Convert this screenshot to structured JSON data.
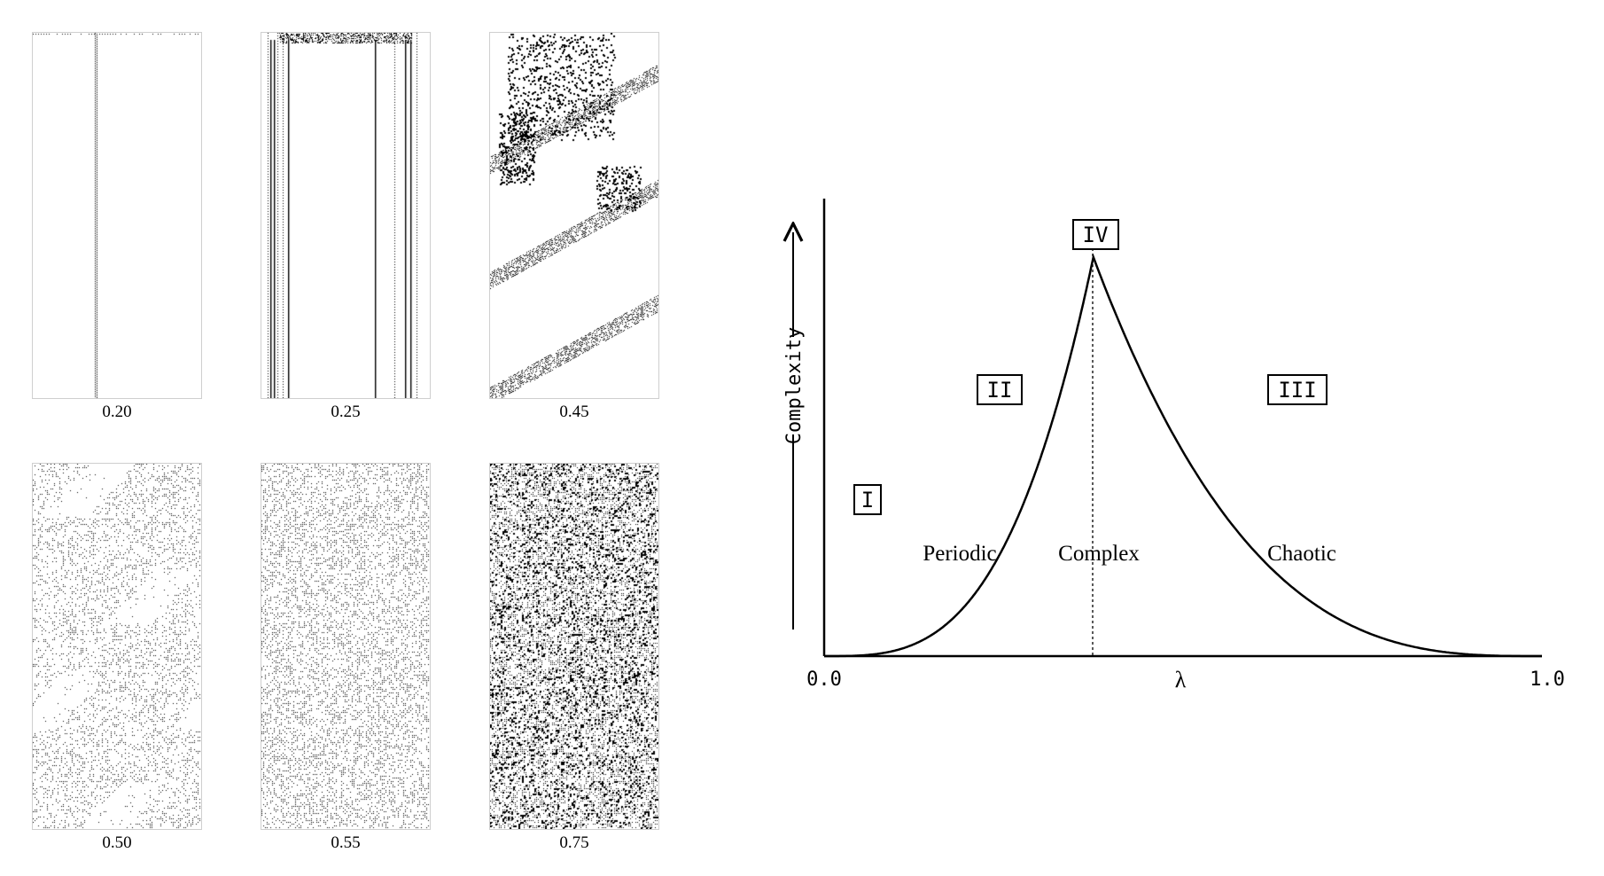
{
  "automata_panels": [
    {
      "lambda": "0.20",
      "pattern": "fixed"
    },
    {
      "lambda": "0.25",
      "pattern": "periodic"
    },
    {
      "lambda": "0.45",
      "pattern": "complex"
    },
    {
      "lambda": "0.50",
      "pattern": "chaotic-sparse"
    },
    {
      "lambda": "0.55",
      "pattern": "chaotic-medium"
    },
    {
      "lambda": "0.75",
      "pattern": "chaotic-dense"
    }
  ],
  "diagram": {
    "y_axis_label": "Complexity",
    "x_axis_label": "λ",
    "x_tick_start": "0.0",
    "x_tick_end": "1.0",
    "classes": {
      "class_1": "I",
      "class_2": "II",
      "class_3": "III",
      "class_4": "IV"
    },
    "regions": {
      "periodic": "Periodic",
      "complex": "Complex",
      "chaotic": "Chaotic"
    },
    "peak_lambda": 0.375,
    "line_color": "#000000"
  }
}
